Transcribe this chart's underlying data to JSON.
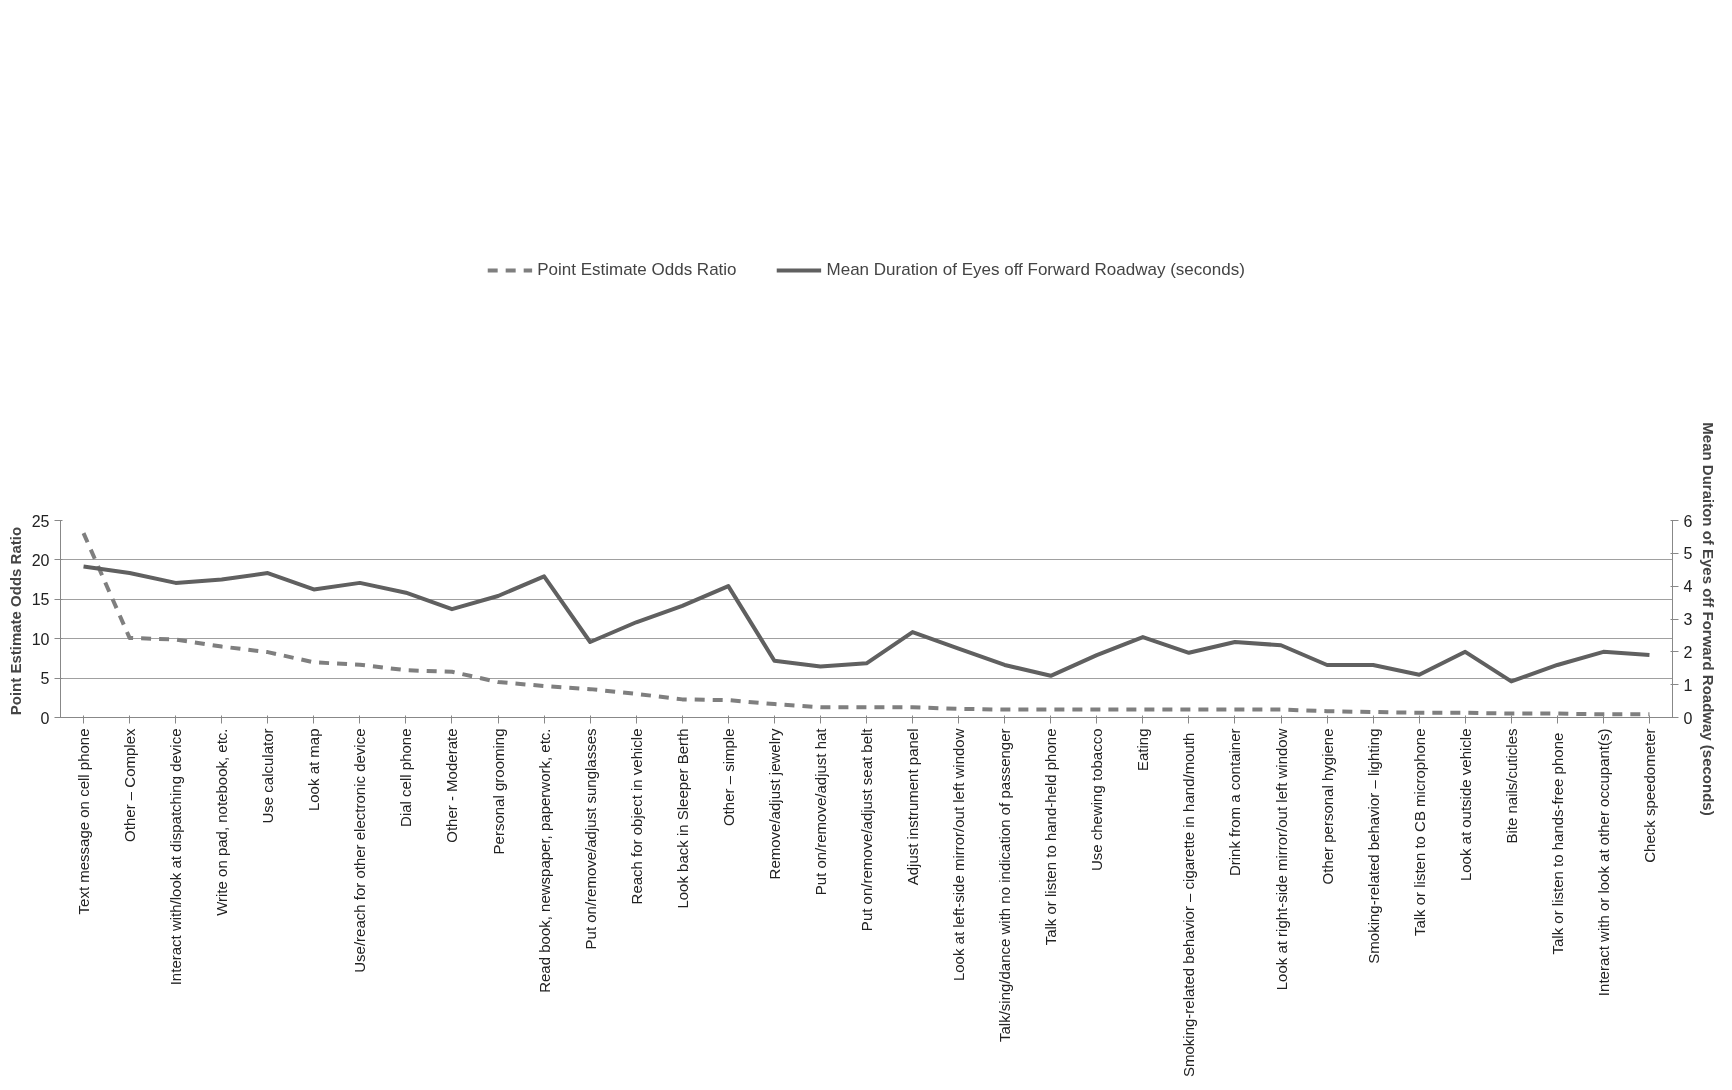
{
  "chart_data": {
    "type": "line",
    "xlabel": null,
    "ylabel": "Point Estimate  Odds Ratio",
    "y2label": "Mean Duraiton of Eyes off Forward Roadway (seconds)",
    "categories": [
      "Text message on cell phone",
      "Other – Complex",
      "Interact with/look at dispatching device",
      "Write on pad, notebook, etc.",
      "Use calculator",
      "Look at map",
      "Use/reach for other electronic device",
      "Dial cell phone",
      "Other - Moderate",
      "Personal grooming",
      "Read book, newspaper, paperwork, etc.",
      "Put on/remove/adjust sunglasses",
      "Reach for object in vehicle",
      "Look back in Sleeper Berth",
      "Other – simple",
      "Remove/adjust jewelry",
      "Put on/remove/adjust hat",
      "Put on/remove/adjust seat belt",
      "Adjust instrument panel",
      "Look at left-side mirror/out left window",
      "Talk/sing/dance with no indication of passenger",
      "Talk or listen to hand-held phone",
      "Use chewing tobacco",
      "Eating",
      "Smoking-related  behavior – cigarette in hand/mouth",
      "Drink from a container",
      "Look at right-side mirror/out left window",
      "Other personal hygiene",
      "Smoking-related behavior – lighting",
      "Talk or listen to CB microphone",
      "Look at outside vehicle",
      "Bite nails/cuticles",
      "Talk or listen to hands-free  phone",
      "Interact with or look at other occupant(s)",
      "Check speedometer"
    ],
    "series": [
      {
        "name": "Point Estimate Odds Ratio",
        "color": "#7f7f7f",
        "line_style": "dashed",
        "values": [
          23.4,
          10.1,
          9.9,
          9.0,
          8.3,
          7.0,
          6.7,
          6.0,
          5.8,
          4.5,
          4.0,
          3.6,
          3.0,
          2.3,
          2.2,
          1.7,
          1.3,
          1.3,
          1.3,
          1.1,
          1.0,
          1.0,
          1.0,
          1.0,
          1.0,
          1.0,
          1.0,
          0.8,
          0.7,
          0.6,
          0.6,
          0.5,
          0.5,
          0.4,
          0.4
        ]
      },
      {
        "name": "Mean Duration of Eyes off Forward Roadway (seconds)",
        "color": "#606060",
        "line_style": "solid",
        "axis": "y2",
        "values": [
          4.6,
          4.4,
          4.1,
          4.2,
          4.4,
          3.9,
          4.1,
          3.8,
          3.3,
          3.7,
          4.3,
          2.3,
          2.9,
          3.4,
          4.0,
          1.73,
          1.55,
          1.65,
          2.6,
          2.1,
          1.6,
          1.27,
          1.9,
          2.45,
          1.97,
          2.3,
          2.2,
          1.6,
          1.6,
          1.3,
          2.0,
          1.1,
          1.6,
          2.0,
          1.9
        ]
      }
    ],
    "ylim": [
      0,
      25
    ],
    "yticks": [
      0,
      5,
      10,
      15,
      20,
      25
    ],
    "y2lim": [
      0,
      6
    ],
    "y2ticks": [
      0,
      1,
      2,
      3,
      4,
      5,
      6
    ],
    "grid": "y",
    "legend": "top",
    "marker": "none"
  }
}
